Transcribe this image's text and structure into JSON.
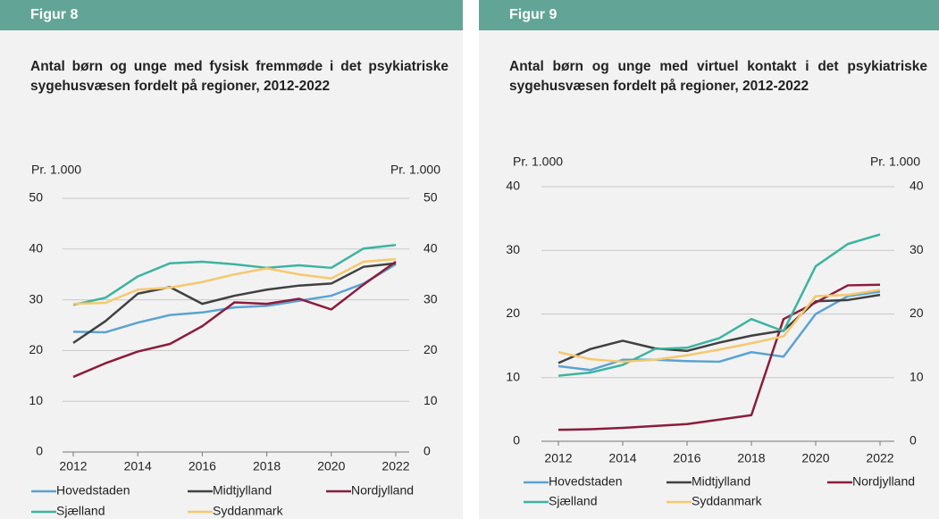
{
  "chart_data": [
    {
      "type": "line",
      "header": "Figur 8",
      "title": "Antal børn og unge med fysisk fremmøde i det psykiatriske sygehusvæsen fordelt på regioner, 2012-2022",
      "ylabel": "Pr. 1.000",
      "x": [
        2012,
        2013,
        2014,
        2015,
        2016,
        2017,
        2018,
        2019,
        2020,
        2021,
        2022
      ],
      "xlim": [
        2012,
        2022
      ],
      "xticks": [
        2012,
        2014,
        2016,
        2018,
        2020,
        2022
      ],
      "ylim": [
        0,
        50
      ],
      "yticks": [
        0,
        10,
        20,
        30,
        40,
        50
      ],
      "grid": true,
      "series": [
        {
          "name": "Hovedstaden",
          "color": "#5ba3d0",
          "values": [
            23.7,
            23.6,
            25.5,
            27.0,
            27.5,
            28.5,
            28.8,
            29.8,
            30.8,
            33.2,
            37.0
          ]
        },
        {
          "name": "Midtjylland",
          "color": "#404040",
          "values": [
            21.5,
            25.8,
            31.2,
            32.5,
            29.2,
            30.8,
            32.0,
            32.8,
            33.2,
            36.5,
            37.2
          ]
        },
        {
          "name": "Nordjylland",
          "color": "#8b1c3c",
          "values": [
            14.8,
            17.5,
            19.8,
            21.3,
            24.8,
            29.5,
            29.2,
            30.2,
            28.1,
            33.0,
            37.5
          ]
        },
        {
          "name": "Sjælland",
          "color": "#3cb4a0",
          "values": [
            29.0,
            30.4,
            34.6,
            37.2,
            37.5,
            37.0,
            36.3,
            36.8,
            36.3,
            40.1,
            40.8
          ]
        },
        {
          "name": "Syddanmark",
          "color": "#f5c86e",
          "values": [
            29.2,
            29.4,
            32.0,
            32.4,
            33.5,
            35.0,
            36.2,
            35.0,
            34.2,
            37.5,
            38.0
          ]
        }
      ]
    },
    {
      "type": "line",
      "header": "Figur 9",
      "title": "Antal børn og unge med virtuel kontakt i det psykiatriske sygehusvæsen fordelt på regioner, 2012-2022",
      "ylabel": "Pr. 1.000",
      "x": [
        2012,
        2013,
        2014,
        2015,
        2016,
        2017,
        2018,
        2019,
        2020,
        2021,
        2022
      ],
      "xlim": [
        2012,
        2022
      ],
      "xticks": [
        2012,
        2014,
        2016,
        2018,
        2020,
        2022
      ],
      "ylim": [
        0,
        40
      ],
      "yticks": [
        0,
        10,
        20,
        30,
        40
      ],
      "grid": true,
      "series": [
        {
          "name": "Hovedstaden",
          "color": "#5ba3d0",
          "values": [
            11.8,
            11.2,
            12.8,
            12.8,
            12.6,
            12.5,
            14.0,
            13.3,
            20.0,
            22.8,
            23.5
          ]
        },
        {
          "name": "Midtjylland",
          "color": "#404040",
          "values": [
            12.3,
            14.5,
            15.8,
            14.6,
            14.2,
            15.5,
            16.6,
            17.4,
            22.0,
            22.2,
            23.0
          ]
        },
        {
          "name": "Nordjylland",
          "color": "#8b1c3c",
          "values": [
            1.8,
            1.9,
            2.1,
            2.4,
            2.7,
            3.4,
            4.1,
            19.2,
            21.8,
            24.5,
            24.6
          ]
        },
        {
          "name": "Sjælland",
          "color": "#3cb4a0",
          "values": [
            10.3,
            10.8,
            12.0,
            14.5,
            14.7,
            16.2,
            19.2,
            17.3,
            27.5,
            31.0,
            32.5
          ]
        },
        {
          "name": "Syddanmark",
          "color": "#f5c86e",
          "values": [
            14.0,
            12.9,
            12.5,
            12.8,
            13.5,
            14.4,
            15.4,
            16.5,
            22.8,
            23.0,
            23.8
          ]
        }
      ]
    }
  ]
}
